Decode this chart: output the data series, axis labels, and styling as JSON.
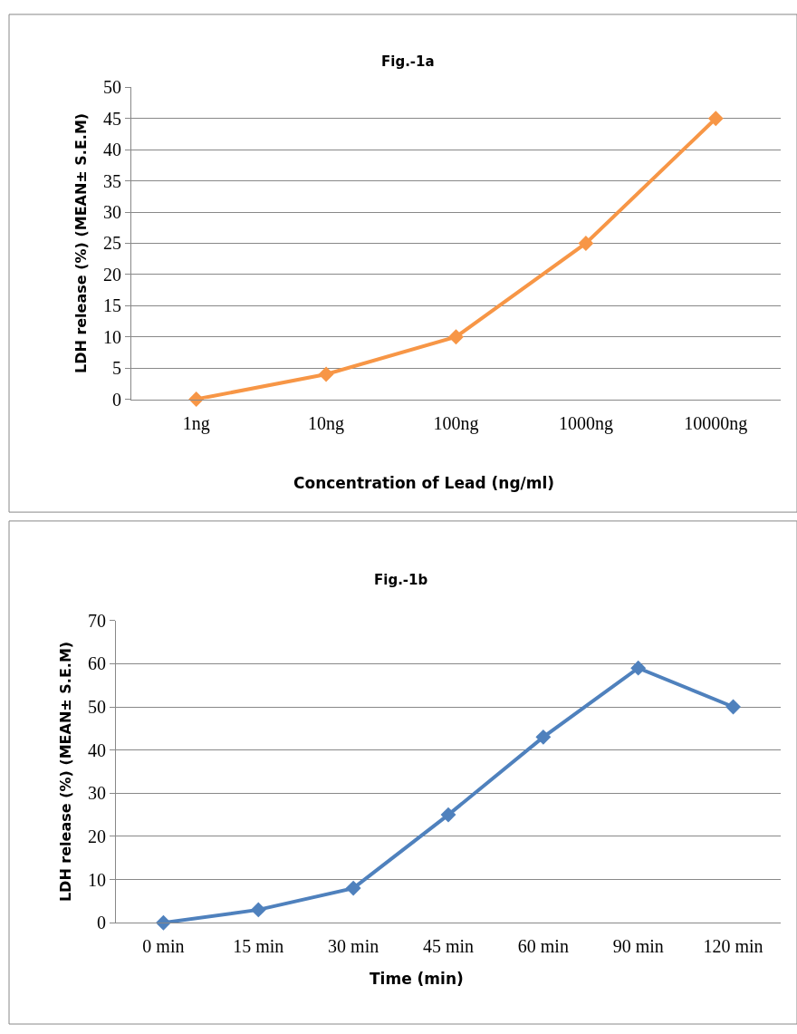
{
  "chart_data": [
    {
      "type": "line",
      "title": "Fig.-1a",
      "xlabel": "Concentration of Lead (ng/ml)",
      "ylabel": "LDH release (%) (MEAN± S.E.M)",
      "categories": [
        "1ng",
        "10ng",
        "100ng",
        "1000ng",
        "10000ng"
      ],
      "series": [
        {
          "color": "#f79646",
          "values": [
            0,
            4,
            10,
            25,
            45
          ]
        }
      ],
      "ylim": [
        0,
        50
      ],
      "yticks": [
        0,
        5,
        10,
        15,
        20,
        25,
        30,
        35,
        40,
        45,
        50
      ],
      "grid": "y",
      "marker": "diamond",
      "line_style": "solid"
    },
    {
      "type": "line",
      "title": "Fig.-1b",
      "xlabel": "Time (min)",
      "ylabel": "LDH release (%) (MEAN± S.E.M)",
      "categories": [
        "0 min",
        "15 min",
        "30 min",
        "45 min",
        "60 min",
        "90 min",
        "120 min"
      ],
      "series": [
        {
          "color": "#4f81bd",
          "values": [
            0,
            3,
            8,
            25,
            43,
            59,
            50
          ]
        }
      ],
      "ylim": [
        0,
        70
      ],
      "yticks": [
        0,
        10,
        20,
        30,
        40,
        50,
        60,
        70
      ],
      "grid": "y",
      "marker": "diamond",
      "line_style": "solid"
    }
  ]
}
